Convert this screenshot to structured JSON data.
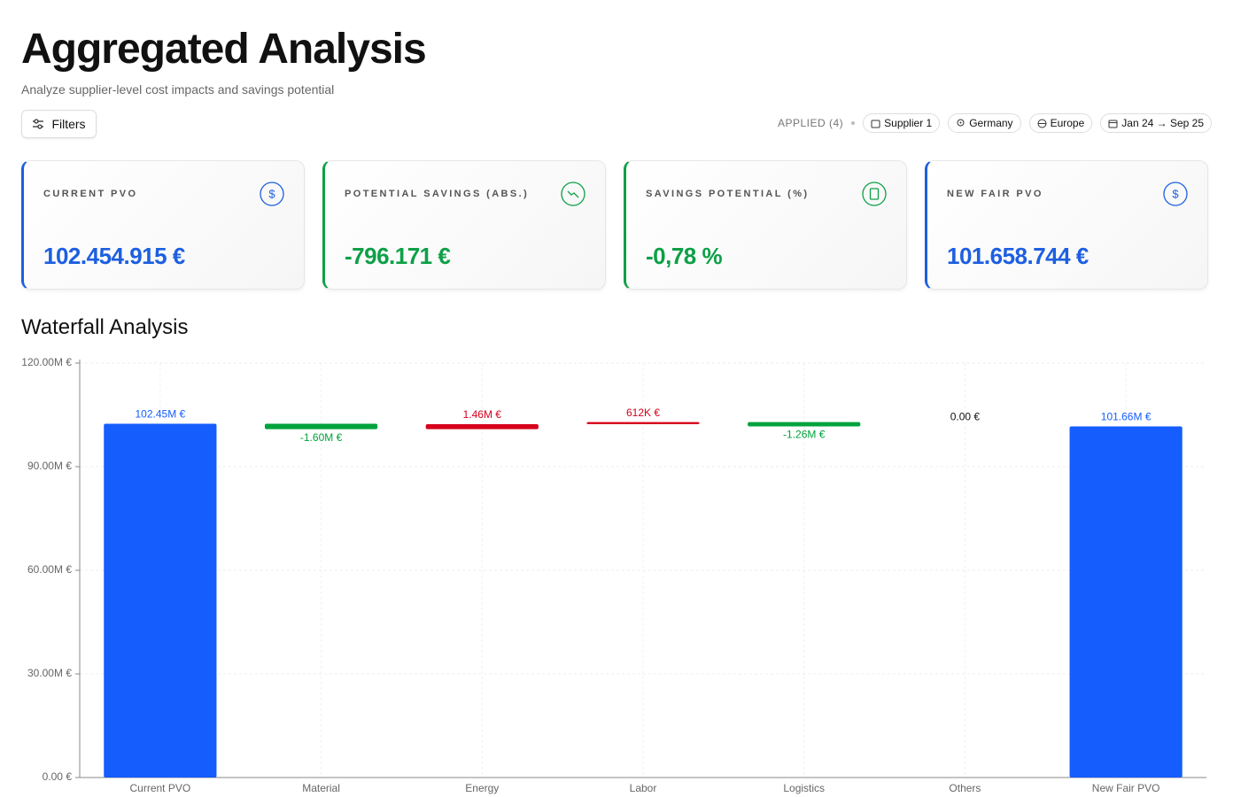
{
  "header": {
    "title": "Aggregated Analysis",
    "subtitle": "Analyze supplier-level cost impacts and savings potential"
  },
  "filters": {
    "button": "Filters",
    "applied": "APPLIED (4)",
    "chips": [
      "Supplier 1",
      "Germany",
      "Europe",
      "Jan 24 → Sep 25"
    ]
  },
  "kpis": [
    {
      "label": "CURRENT PVO",
      "value": "102.454.915 €",
      "color": "#1d5fe0"
    },
    {
      "label": "POTENTIAL SAVINGS (ABS.)",
      "value": "-796.171 €",
      "color": "#0ea047"
    },
    {
      "label": "SAVINGS POTENTIAL (%)",
      "value": "-0,78 %",
      "color": "#0ea047"
    },
    {
      "label": "NEW FAIR PVO",
      "value": "101.658.744 €",
      "color": "#1d5fe0"
    }
  ],
  "chart_data": {
    "type": "waterfall",
    "title": "Waterfall Analysis",
    "categories": [
      "Current PVO",
      "Material",
      "Energy",
      "Labor",
      "Logistics",
      "Others",
      "New Fair PVO"
    ],
    "measure": [
      "total",
      "relative",
      "relative",
      "relative",
      "relative",
      "relative",
      "total"
    ],
    "values": [
      102450000,
      -1600000,
      1460000,
      612000,
      -1260000,
      0,
      101660000
    ],
    "value_labels": [
      "102.45M €",
      "-1.60M €",
      "1.46M €",
      "612K €",
      "-1.26M €",
      "0.00 €",
      "101.66M €"
    ],
    "colors": {
      "total": "#155dfc",
      "increase": "#d6001c",
      "decrease": "#00a33c",
      "zero": "#111111"
    },
    "ylim": [
      0,
      120000000
    ],
    "yticks": [
      {
        "value": 0,
        "label": "0.00 €"
      },
      {
        "value": 30000000,
        "label": "30.00M €"
      },
      {
        "value": 60000000,
        "label": "60.00M €"
      },
      {
        "value": 90000000,
        "label": "90.00M €"
      },
      {
        "value": 120000000,
        "label": "120.00M €"
      }
    ],
    "grid": true
  }
}
